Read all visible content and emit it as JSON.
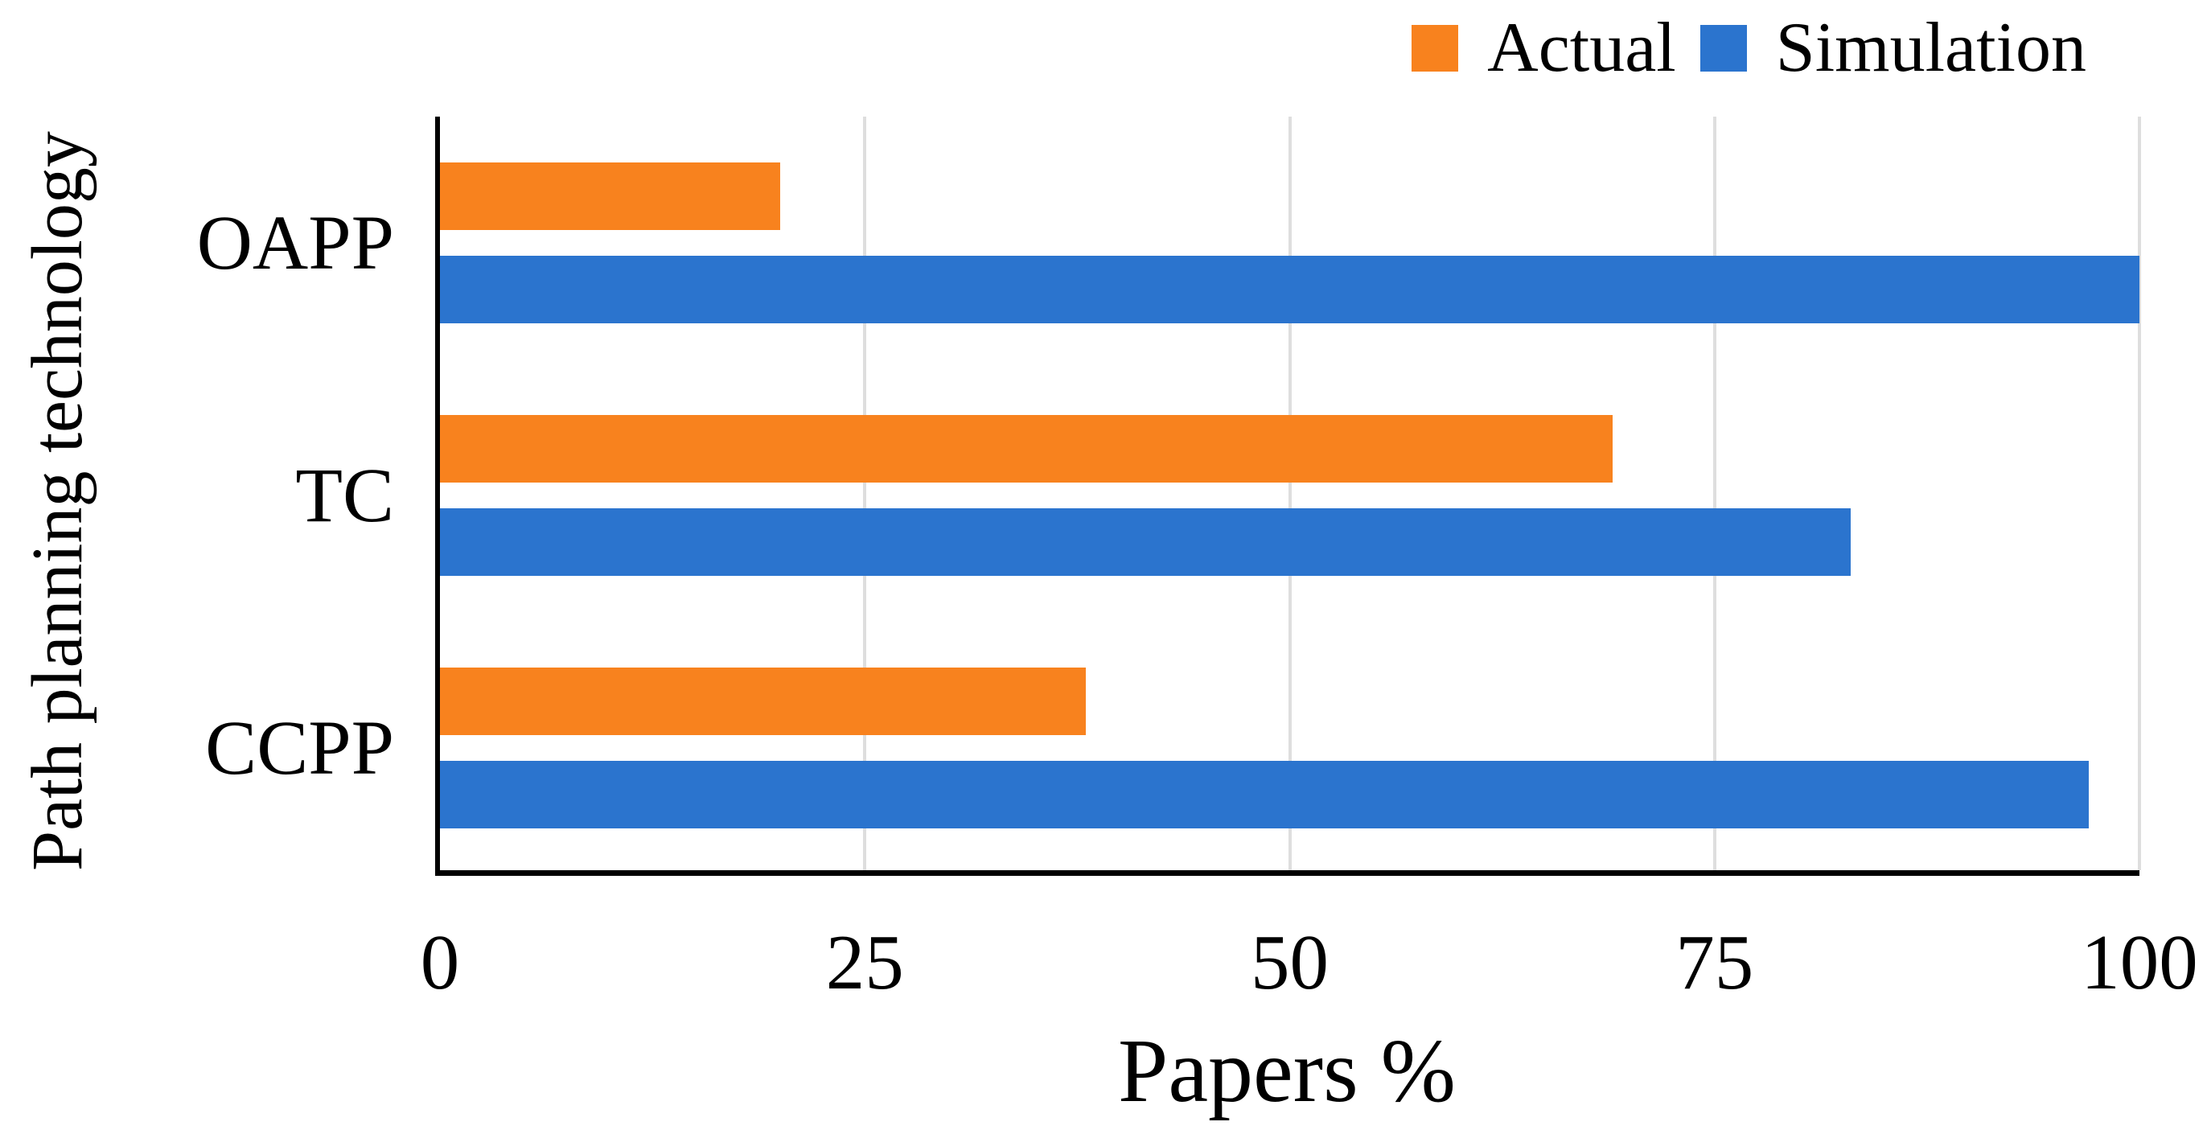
{
  "chart_data": {
    "type": "bar",
    "orientation": "horizontal",
    "title": "",
    "xlabel": "Papers %",
    "ylabel": "Path planning technology",
    "categories": [
      "OAPP",
      "TC",
      "CCPP"
    ],
    "series": [
      {
        "name": "Actual",
        "color": "#F8821E",
        "values": [
          20,
          69,
          38
        ]
      },
      {
        "name": "Simulation",
        "color": "#2B74CE",
        "values": [
          100,
          83,
          97
        ]
      }
    ],
    "xlim": [
      0,
      100
    ],
    "xticks": [
      0,
      25,
      50,
      75,
      100
    ],
    "grid": "vertical gridlines at ticks",
    "legend_position": "top-right"
  },
  "legend": {
    "items": [
      {
        "label": "Actual",
        "color": "#F8821E"
      },
      {
        "label": "Simulation",
        "color": "#2B74CE"
      }
    ]
  },
  "colors": {
    "actual": "#F8821E",
    "simulation": "#2B74CE",
    "gridline": "#DEDEDE",
    "axis": "#000000",
    "text": "#000000",
    "background": "#FFFFFF"
  }
}
